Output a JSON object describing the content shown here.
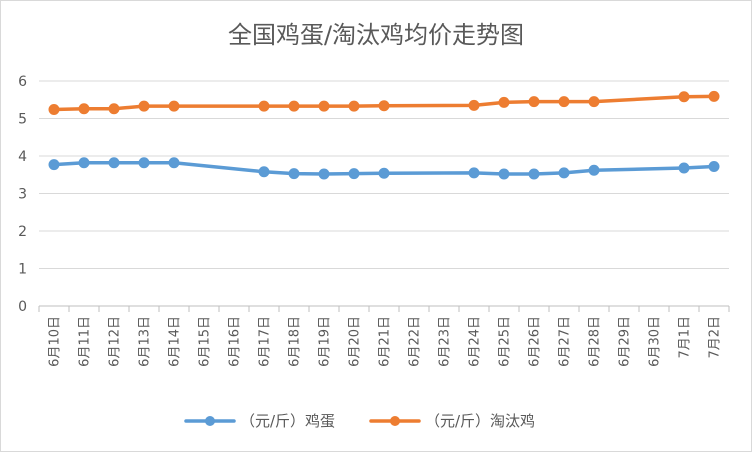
{
  "chart_data": {
    "type": "line",
    "title": "全国鸡蛋/淘汰鸡均价走势图",
    "xlabel": "",
    "ylabel": "",
    "ylim": [
      0,
      6
    ],
    "yticks": [
      "0",
      "1",
      "2",
      "3",
      "4",
      "5",
      "6"
    ],
    "grid": true,
    "legend_position": "bottom",
    "categories": [
      "6月10日",
      "6月11日",
      "6月12日",
      "6月13日",
      "6月14日",
      "6月15日",
      "6月16日",
      "6月17日",
      "6月18日",
      "6月19日",
      "6月20日",
      "6月21日",
      "6月22日",
      "6月23日",
      "6月24日",
      "6月25日",
      "6月26日",
      "6月27日",
      "6月28日",
      "6月29日",
      "6月30日",
      "7月1日",
      "7月2日"
    ],
    "series": [
      {
        "name": "（元/斤）鸡蛋",
        "color": "#5b9bd5",
        "values": [
          3.77,
          3.82,
          3.82,
          3.82,
          3.82,
          null,
          null,
          3.58,
          3.53,
          3.52,
          3.53,
          3.54,
          null,
          null,
          3.55,
          3.52,
          3.52,
          3.55,
          3.62,
          null,
          null,
          3.68,
          3.72
        ]
      },
      {
        "name": "（元/斤）淘汰鸡",
        "color": "#ed7d31",
        "values": [
          5.24,
          5.26,
          5.26,
          5.33,
          5.33,
          null,
          null,
          5.33,
          5.33,
          5.33,
          5.33,
          5.34,
          null,
          null,
          5.35,
          5.43,
          5.45,
          5.45,
          5.45,
          null,
          null,
          5.58,
          5.59
        ]
      }
    ]
  }
}
